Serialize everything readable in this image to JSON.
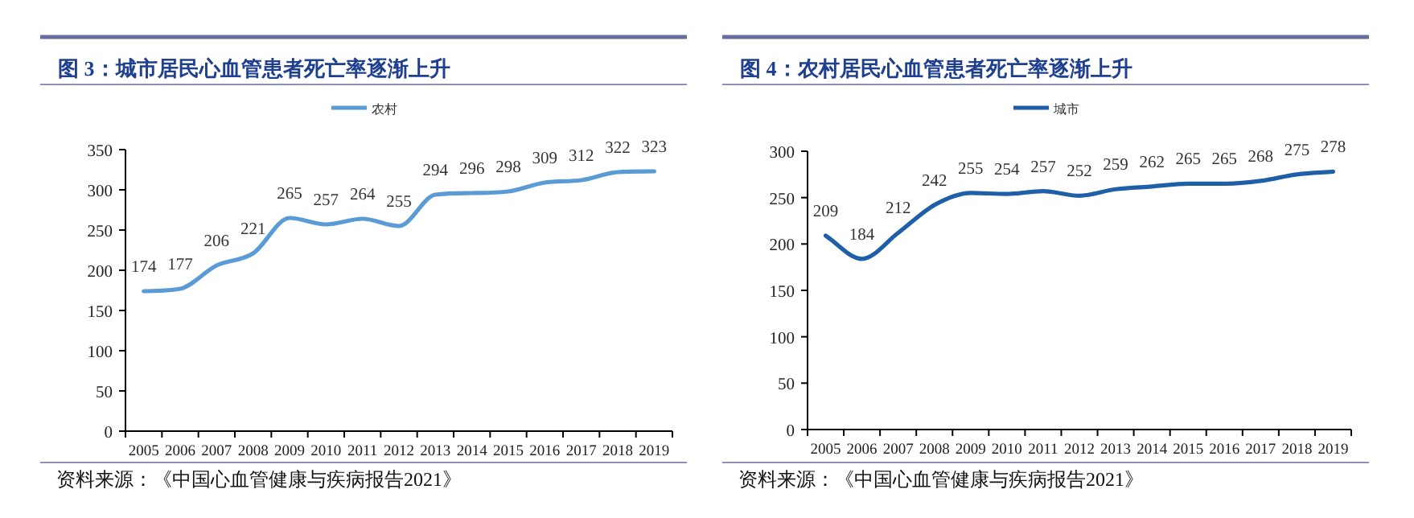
{
  "chart_data": [
    {
      "type": "line",
      "title": "图 3：城市居民心血管患者死亡率逐渐上升",
      "categories": [
        "2005",
        "2006",
        "2007",
        "2008",
        "2009",
        "2010",
        "2011",
        "2012",
        "2013",
        "2014",
        "2015",
        "2016",
        "2017",
        "2018",
        "2019"
      ],
      "series": [
        {
          "name": "农村",
          "color": "#5b9bd5",
          "values": [
            174,
            177,
            206,
            221,
            265,
            257,
            264,
            255,
            294,
            296,
            298,
            309,
            312,
            322,
            323
          ]
        }
      ],
      "ylim": [
        0,
        350
      ],
      "yticks": [
        0,
        50,
        100,
        150,
        200,
        250,
        300,
        350
      ],
      "data_labels": true,
      "legend": "top",
      "marker": "none",
      "line_style": "solid",
      "annotations": [
        "资料来源：《中国心血管健康与疾病报告2021》"
      ]
    },
    {
      "type": "line",
      "title": "图 4：农村居民心血管患者死亡率逐渐上升",
      "categories": [
        "2005",
        "2006",
        "2007",
        "2008",
        "2009",
        "2010",
        "2011",
        "2012",
        "2013",
        "2014",
        "2015",
        "2016",
        "2017",
        "2018",
        "2019"
      ],
      "series": [
        {
          "name": "城市",
          "color": "#1f5fa8",
          "values": [
            209,
            184,
            212,
            242,
            255,
            254,
            257,
            252,
            259,
            262,
            265,
            265,
            268,
            275,
            278
          ]
        }
      ],
      "ylim": [
        0,
        300
      ],
      "yticks": [
        0,
        50,
        100,
        150,
        200,
        250,
        300
      ],
      "data_labels": true,
      "legend": "top",
      "marker": "none",
      "line_style": "solid",
      "annotations": [
        "资料来源：《中国心血管健康与疾病报告2021》"
      ]
    }
  ]
}
